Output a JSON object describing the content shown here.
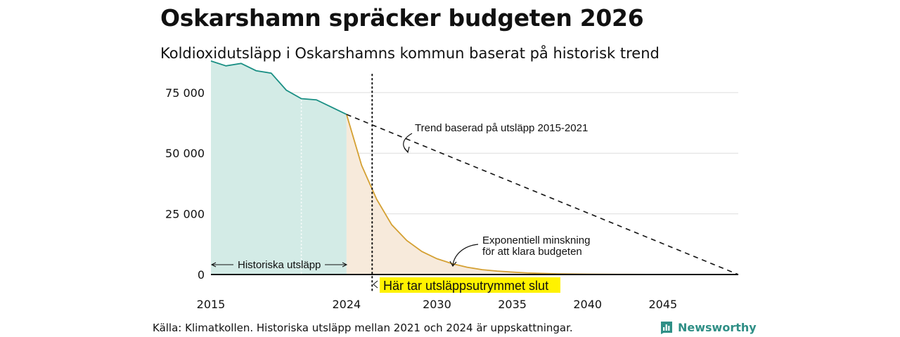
{
  "header": {
    "title": "Oskarshamn spräcker budgeten 2026",
    "subtitle": "Koldioxidutsläpp i Oskarshamns kommun baserat på historisk trend"
  },
  "footer": {
    "source": "Källa: Klimatkollen. Historiska utsläpp mellan 2021 och 2024 är uppskattningar.",
    "brand": "Newsworthy"
  },
  "colors": {
    "history_line": "#1a8f84",
    "history_fill": "#d3ebe6",
    "budget_line": "#d4a032",
    "budget_fill": "#f7eadb",
    "highlight": "#fff200",
    "grid": "#dddddd"
  },
  "chart_data": {
    "type": "area",
    "title": "Oskarshamn spräcker budgeten 2026",
    "subtitle": "Koldioxidutsläpp i Oskarshamns kommun baserat på historisk trend",
    "xlim": [
      2015,
      2050
    ],
    "ylim": [
      0,
      90000
    ],
    "yticks": [
      0,
      25000,
      50000,
      75000
    ],
    "ytick_labels": [
      "0",
      "25 000",
      "50 000",
      "75 000"
    ],
    "xticks": [
      2015,
      2024,
      2030,
      2035,
      2040,
      2045
    ],
    "xtick_labels": [
      "2015",
      "2024",
      "2030",
      "2035",
      "2040",
      "2045"
    ],
    "series": [
      {
        "name": "Historiska utsläpp",
        "style": "area-line",
        "x": [
          2015,
          2016,
          2017,
          2018,
          2019,
          2020,
          2021,
          2022,
          2023,
          2024
        ],
        "y": [
          88000,
          86000,
          87000,
          84000,
          83000,
          76000,
          72500,
          72000,
          69000,
          66000
        ]
      },
      {
        "name": "Exponentiell minskning för att klara budgeten",
        "style": "area-line",
        "x": [
          2024,
          2025,
          2026,
          2027,
          2028,
          2029,
          2030,
          2031,
          2032,
          2033,
          2034,
          2035,
          2036,
          2037,
          2038,
          2039,
          2040,
          2042,
          2044,
          2046,
          2048,
          2050
        ],
        "y": [
          66000,
          45000,
          31000,
          20500,
          14000,
          9500,
          6500,
          4500,
          3000,
          2000,
          1400,
          1000,
          650,
          450,
          300,
          200,
          130,
          60,
          30,
          10,
          5,
          0
        ]
      },
      {
        "name": "Trend baserad på utsläpp 2015-2021",
        "style": "dashed",
        "x": [
          2024,
          2050
        ],
        "y": [
          66000,
          0
        ]
      }
    ],
    "annotations": {
      "trend": "Trend baserad på utsläpp 2015-2021",
      "exp_line1": "Exponentiell minskning",
      "exp_line2": "för att klara budgeten",
      "history": "Historiska utsläpp",
      "budget_end": "Här tar utsläppsutrymmet slut"
    },
    "budget_end_year": 2025.7,
    "history_split_year": 2021
  }
}
